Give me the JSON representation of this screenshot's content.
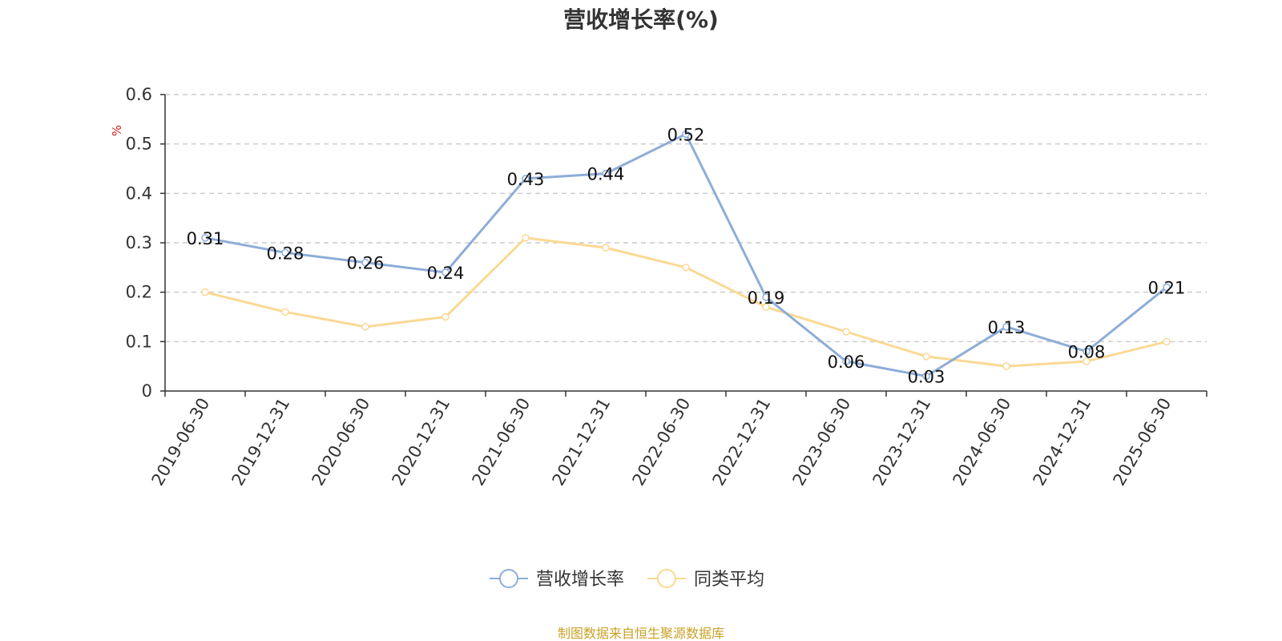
{
  "title": "营收增长率(%)",
  "unit_label": "%",
  "source_note": "制图数据来自恒生聚源数据库",
  "colors": {
    "series1": "#8eadd8",
    "series2": "#fad994",
    "grid": "#cccccc",
    "axis": "#333333",
    "source": "#c9a227",
    "unit": "#e02020"
  },
  "chart_data": {
    "type": "line",
    "title": "营收增长率(%)",
    "ylabel": "%",
    "xlabel": "",
    "ylim": [
      0,
      0.6
    ],
    "yticks": [
      0,
      0.1,
      0.2,
      0.3,
      0.4,
      0.5,
      0.6
    ],
    "ytick_labels": [
      "0",
      "0.1",
      "0.2",
      "0.3",
      "0.4",
      "0.5",
      "0.6"
    ],
    "grid": true,
    "legend_position": "bottom-center",
    "categories": [
      "2019-06-30",
      "2019-12-31",
      "2020-06-30",
      "2020-12-31",
      "2021-06-30",
      "2021-12-31",
      "2022-06-30",
      "2022-12-31",
      "2023-06-30",
      "2023-12-31",
      "2024-06-30",
      "2024-12-31",
      "2025-06-30"
    ],
    "series": [
      {
        "name": "营收增长率",
        "values": [
          0.31,
          0.28,
          0.26,
          0.24,
          0.43,
          0.44,
          0.52,
          0.19,
          0.06,
          0.03,
          0.13,
          0.08,
          0.21
        ],
        "labels": [
          "0.31",
          "0.28",
          "0.26",
          "0.24",
          "0.43",
          "0.44",
          "0.52",
          "0.19",
          "0.06",
          "0.03",
          "0.13",
          "0.08",
          "0.21"
        ]
      },
      {
        "name": "同类平均",
        "values": [
          0.2,
          0.16,
          0.13,
          0.15,
          0.31,
          0.29,
          0.25,
          0.17,
          0.12,
          0.07,
          0.05,
          0.06,
          0.1
        ]
      }
    ]
  }
}
